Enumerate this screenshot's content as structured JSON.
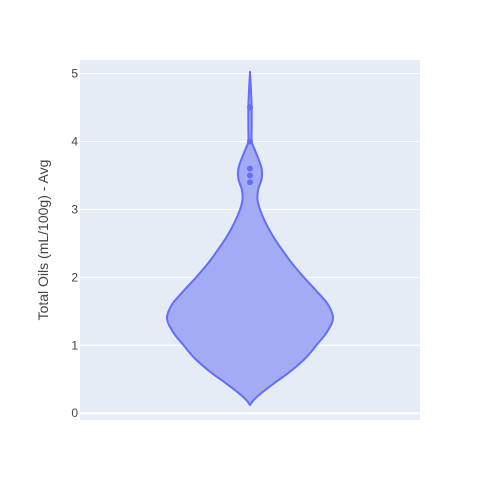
{
  "chart_data": {
    "type": "violin",
    "ylabel": "Total Oils (mL/100g) - Avg",
    "ylim": [
      -0.1,
      5.2
    ],
    "yticks": [
      0,
      1,
      2,
      3,
      4,
      5
    ],
    "ytick_labels": [
      "0",
      "1",
      "2",
      "3",
      "4",
      "5"
    ],
    "grid": true,
    "plot_bg": "#e5ecf6",
    "grid_color": "#ffffff",
    "violin_fill": "#a3abf5",
    "violin_line": "#636efa",
    "kde_max_density": 1.0,
    "density_profile": [
      {
        "y": 0.12,
        "d": 0.0
      },
      {
        "y": 0.2,
        "d": 0.05
      },
      {
        "y": 0.3,
        "d": 0.14
      },
      {
        "y": 0.45,
        "d": 0.3
      },
      {
        "y": 0.6,
        "d": 0.47
      },
      {
        "y": 0.8,
        "d": 0.66
      },
      {
        "y": 1.0,
        "d": 0.8
      },
      {
        "y": 1.2,
        "d": 0.93
      },
      {
        "y": 1.4,
        "d": 1.0
      },
      {
        "y": 1.6,
        "d": 0.94
      },
      {
        "y": 1.8,
        "d": 0.8
      },
      {
        "y": 2.0,
        "d": 0.65
      },
      {
        "y": 2.2,
        "d": 0.51
      },
      {
        "y": 2.4,
        "d": 0.39
      },
      {
        "y": 2.6,
        "d": 0.28
      },
      {
        "y": 2.8,
        "d": 0.19
      },
      {
        "y": 3.0,
        "d": 0.12
      },
      {
        "y": 3.15,
        "d": 0.09
      },
      {
        "y": 3.3,
        "d": 0.1
      },
      {
        "y": 3.45,
        "d": 0.14
      },
      {
        "y": 3.6,
        "d": 0.14
      },
      {
        "y": 3.75,
        "d": 0.1
      },
      {
        "y": 3.9,
        "d": 0.05
      },
      {
        "y": 4.0,
        "d": 0.02
      },
      {
        "y": 4.2,
        "d": 0.02
      },
      {
        "y": 4.5,
        "d": 0.02
      },
      {
        "y": 4.8,
        "d": 0.01
      },
      {
        "y": 5.0,
        "d": 0.0
      }
    ],
    "points": [
      3.4,
      3.5,
      3.6,
      4.0,
      4.5
    ]
  }
}
